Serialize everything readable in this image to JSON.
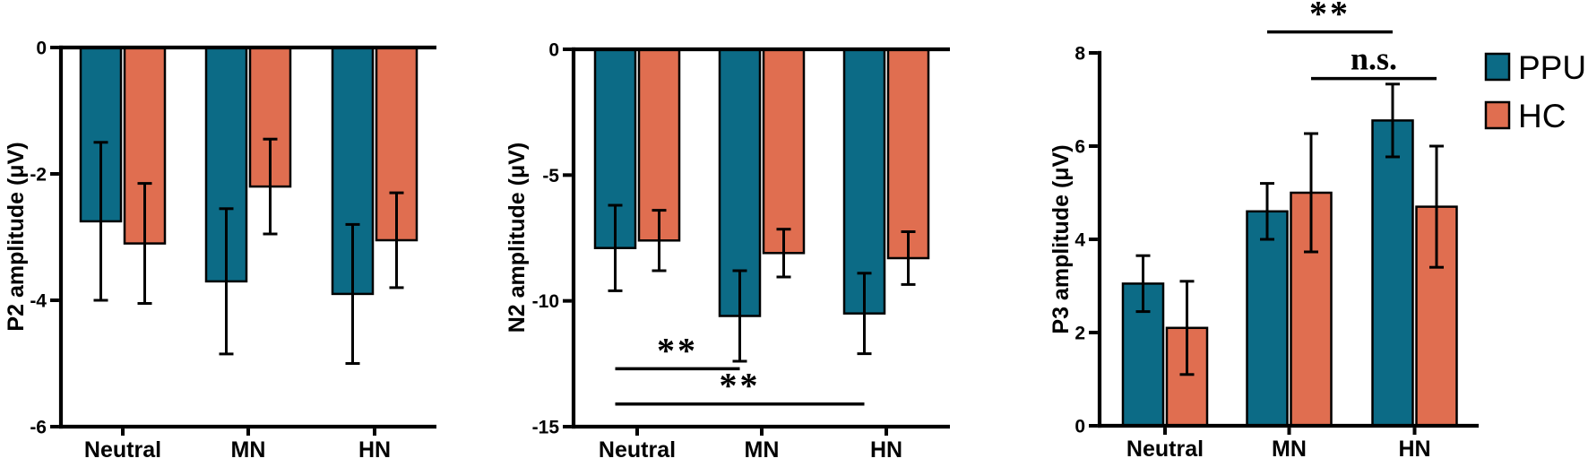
{
  "figure": {
    "background": "#ffffff",
    "axis_color": "#000000",
    "series_colors": {
      "PPU": "#0c6b86",
      "HC": "#e06e50"
    },
    "legend": {
      "position": "top-right",
      "items": [
        {
          "label": "PPU",
          "color": "#0c6b86"
        },
        {
          "label": "HC",
          "color": "#e06e50"
        }
      ]
    }
  },
  "chart_data": [
    {
      "name": "p2",
      "type": "bar",
      "title": "",
      "xlabel": "",
      "ylabel": "P2 amplitude (μV)",
      "categories": [
        "Neutral",
        "MN",
        "HN"
      ],
      "series": [
        {
          "name": "PPU",
          "values": [
            -2.75,
            -3.7,
            -3.9
          ],
          "errors": [
            1.25,
            1.15,
            1.1
          ]
        },
        {
          "name": "HC",
          "values": [
            -3.1,
            -2.2,
            -3.05
          ],
          "errors": [
            0.95,
            0.75,
            0.75
          ]
        }
      ],
      "ylim": [
        -6,
        0
      ],
      "yticks": [
        0,
        -2,
        -4,
        -6
      ],
      "grid": false,
      "error_bars": "both-caps",
      "significance": []
    },
    {
      "name": "n2",
      "type": "bar",
      "title": "",
      "xlabel": "",
      "ylabel": "N2 amplitude (μV)",
      "categories": [
        "Neutral",
        "MN",
        "HN"
      ],
      "series": [
        {
          "name": "PPU",
          "values": [
            -7.9,
            -10.6,
            -10.5
          ],
          "errors": [
            1.7,
            1.8,
            1.6
          ]
        },
        {
          "name": "HC",
          "values": [
            -7.6,
            -8.1,
            -8.3
          ],
          "errors": [
            1.2,
            0.95,
            1.05
          ]
        }
      ],
      "ylim": [
        -15,
        0
      ],
      "yticks": [
        0,
        -5,
        -10,
        -15
      ],
      "grid": false,
      "error_bars": "both-caps",
      "significance": [
        {
          "label": "**",
          "from_cat": 0,
          "from_series": 0,
          "to_cat": 1,
          "to_series": 0,
          "y": -12.7
        },
        {
          "label": "**",
          "from_cat": 0,
          "from_series": 0,
          "to_cat": 2,
          "to_series": 0,
          "y": -14.1
        }
      ]
    },
    {
      "name": "p3",
      "type": "bar",
      "title": "",
      "xlabel": "",
      "ylabel": "P3 amplitude (μV)",
      "categories": [
        "Neutral",
        "MN",
        "HN"
      ],
      "series": [
        {
          "name": "PPU",
          "values": [
            3.05,
            4.6,
            6.55
          ],
          "errors": [
            0.6,
            0.6,
            0.78
          ]
        },
        {
          "name": "HC",
          "values": [
            2.1,
            5.0,
            4.7
          ],
          "errors": [
            1.0,
            1.27,
            1.3
          ]
        }
      ],
      "ylim": [
        0,
        8
      ],
      "yticks": [
        0,
        2,
        4,
        6,
        8
      ],
      "grid": false,
      "error_bars": "both-caps",
      "significance": [
        {
          "label": "**",
          "from_cat": 1,
          "from_series": 0,
          "to_cat": 2,
          "to_series": 0,
          "y": 8.45
        },
        {
          "label": "n.s.",
          "from_cat": 1,
          "from_series": 1,
          "to_cat": 2,
          "to_series": 1,
          "y": 7.45
        }
      ]
    }
  ]
}
